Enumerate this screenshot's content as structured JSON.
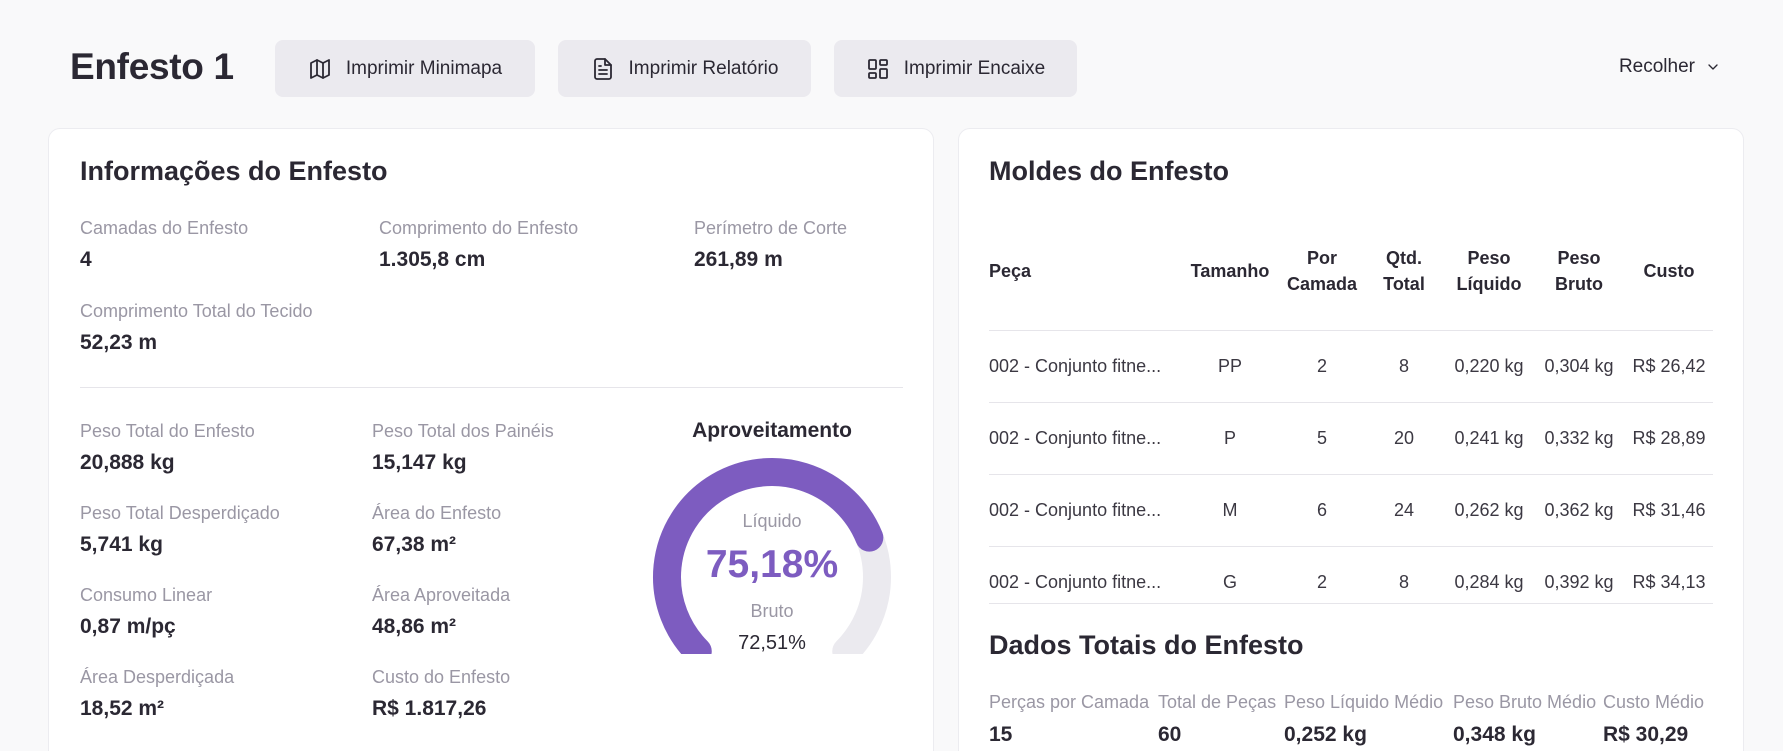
{
  "header": {
    "title": "Enfesto 1",
    "buttons": {
      "minimapa": "Imprimir Minimapa",
      "relatorio": "Imprimir Relatório",
      "encaixe": "Imprimir Encaixe"
    },
    "collapse_label": "Recolher"
  },
  "info": {
    "title": "Informações do Enfesto",
    "top_stats": [
      {
        "label": "Camadas do Enfesto",
        "value": "4"
      },
      {
        "label": "Comprimento do Enfesto",
        "value": "1.305,8 cm"
      },
      {
        "label": "Perímetro de Corte",
        "value": "261,89 m"
      },
      {
        "label": "Comprimento Total do Tecido",
        "value": "52,23 m"
      }
    ],
    "weight_stats": [
      {
        "label": "Peso Total do Enfesto",
        "value": "20,888 kg"
      },
      {
        "label": "Peso Total dos Painéis",
        "value": "15,147 kg"
      },
      {
        "label": "Peso Total Desperdiçado",
        "value": "5,741 kg"
      },
      {
        "label": "Área do Enfesto",
        "value": "67,38 m²"
      },
      {
        "label": "Consumo Linear",
        "value": "0,87 m/pç"
      },
      {
        "label": "Área Aproveitada",
        "value": "48,86 m²"
      },
      {
        "label": "Área Desperdiçada",
        "value": "18,52 m²"
      },
      {
        "label": "Custo do Enfesto",
        "value": "R$ 1.817,26"
      }
    ],
    "gauge": {
      "title": "Aproveitamento",
      "liquid_label": "Líquido",
      "liquid_value": "75,18%",
      "liquid_fraction": 0.7518,
      "gross_label": "Bruto",
      "gross_value": "72,51%",
      "colors": {
        "fill": "#7d5cc0",
        "track": "#ebeaef"
      }
    }
  },
  "molds": {
    "title": "Moldes do Enfesto",
    "columns": {
      "peca": "Peça",
      "tamanho": "Tamanho",
      "por_camada": "Por Camada",
      "qtd_total": "Qtd. Total",
      "peso_liquido": "Peso Líquido",
      "peso_bruto": "Peso Bruto",
      "custo": "Custo"
    },
    "rows": [
      {
        "peca": "002 - Conjunto fitne...",
        "tamanho": "PP",
        "por_camada": "2",
        "qtd_total": "8",
        "peso_liquido": "0,220 kg",
        "peso_bruto": "0,304 kg",
        "custo": "R$ 26,42"
      },
      {
        "peca": "002 - Conjunto fitne...",
        "tamanho": "P",
        "por_camada": "5",
        "qtd_total": "20",
        "peso_liquido": "0,241 kg",
        "peso_bruto": "0,332 kg",
        "custo": "R$ 28,89"
      },
      {
        "peca": "002 - Conjunto fitne...",
        "tamanho": "M",
        "por_camada": "6",
        "qtd_total": "24",
        "peso_liquido": "0,262 kg",
        "peso_bruto": "0,362 kg",
        "custo": "R$ 31,46"
      },
      {
        "peca": "002 - Conjunto fitne...",
        "tamanho": "G",
        "por_camada": "2",
        "qtd_total": "8",
        "peso_liquido": "0,284 kg",
        "peso_bruto": "0,392 kg",
        "custo": "R$ 34,13"
      }
    ]
  },
  "totals": {
    "title": "Dados Totais do Enfesto",
    "items": [
      {
        "label": "Perças por Camada",
        "value": "15"
      },
      {
        "label": "Total de Peças",
        "value": "60"
      },
      {
        "label": "Peso Líquido Médio",
        "value": "0,252 kg"
      },
      {
        "label": "Peso Bruto Médio",
        "value": "0,348 kg"
      },
      {
        "label": "Custo Médio",
        "value": "R$ 30,29"
      }
    ]
  }
}
